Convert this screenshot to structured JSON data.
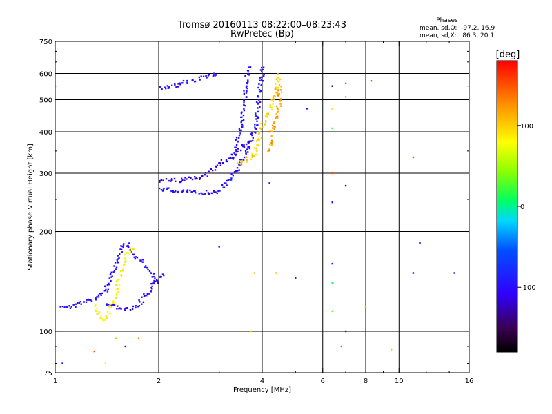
{
  "chart_data": {
    "type": "scatter",
    "title": "Tromsø 20160113 08:22:00–08:23:43",
    "subtitle": "RwPretec (Bp)",
    "xlabel": "Frequency [MHz]",
    "ylabel": "Stationary phase Virtual Height [km]",
    "x_scale": "log",
    "y_scale": "log",
    "xlim": [
      1,
      16
    ],
    "ylim": [
      75,
      750
    ],
    "x_ticks": [
      1,
      2,
      4,
      6,
      8,
      10,
      16
    ],
    "x_tick_labels": [
      "1",
      "2",
      "4",
      "6",
      "8",
      "10",
      "16"
    ],
    "x_grid": [
      2,
      4,
      6,
      8,
      10
    ],
    "y_ticks": [
      75,
      100,
      200,
      300,
      400,
      500,
      600,
      750
    ],
    "y_tick_labels": [
      "75",
      "100",
      "200",
      "300",
      "400",
      "500",
      "600",
      "750"
    ],
    "y_grid": [
      100,
      200,
      300,
      400,
      500,
      600
    ],
    "grid": true,
    "info": {
      "heading": "Phases",
      "line1": "mean, sd,O:  -97.2, 16.9",
      "line2": "mean, sd,X:   86.3, 20.1"
    },
    "colorbar": {
      "label": "[deg]",
      "range": [
        -180,
        180
      ],
      "ticks": [
        100,
        0,
        -100
      ],
      "tick_labels": [
        "100",
        "0",
        "-100"
      ]
    },
    "traces": [
      {
        "name": "",
        "phase": -100,
        "points": [
          [
            1.05,
            120
          ],
          [
            1.1,
            118
          ],
          [
            1.2,
            122
          ],
          [
            1.3,
            125
          ],
          [
            1.4,
            132
          ],
          [
            1.45,
            145
          ],
          [
            1.5,
            160
          ],
          [
            1.55,
            175
          ],
          [
            1.6,
            185
          ],
          [
            1.7,
            170
          ],
          [
            1.8,
            160
          ],
          [
            1.9,
            150
          ],
          [
            2.0,
            140
          ]
        ]
      },
      {
        "name": "",
        "phase": -105,
        "points": [
          [
            1.4,
            120
          ],
          [
            1.5,
            118
          ],
          [
            1.6,
            116
          ],
          [
            1.7,
            118
          ],
          [
            1.8,
            125
          ],
          [
            1.9,
            135
          ],
          [
            2.0,
            145
          ],
          [
            2.1,
            150
          ]
        ]
      },
      {
        "name": "",
        "phase": -95,
        "points": [
          [
            2.0,
            270
          ],
          [
            2.2,
            265
          ],
          [
            2.5,
            263
          ],
          [
            2.8,
            262
          ],
          [
            3.0,
            266
          ],
          [
            3.2,
            285
          ],
          [
            3.4,
            310
          ],
          [
            3.6,
            350
          ],
          [
            3.8,
            400
          ],
          [
            3.9,
            480
          ],
          [
            4.0,
            600
          ],
          [
            4.0,
            640
          ]
        ]
      },
      {
        "name": "",
        "phase": -110,
        "points": [
          [
            2.0,
            285
          ],
          [
            2.3,
            285
          ],
          [
            2.6,
            290
          ],
          [
            2.8,
            300
          ],
          [
            3.0,
            320
          ],
          [
            3.3,
            340
          ],
          [
            3.5,
            360
          ],
          [
            3.7,
            380
          ]
        ]
      },
      {
        "name": "",
        "phase": -100,
        "points": [
          [
            3.3,
            330
          ],
          [
            3.4,
            380
          ],
          [
            3.5,
            430
          ],
          [
            3.55,
            500
          ],
          [
            3.6,
            560
          ],
          [
            3.65,
            620
          ],
          [
            3.7,
            640
          ]
        ]
      },
      {
        "name": "",
        "phase": -100,
        "points": [
          [
            2.0,
            540
          ],
          [
            2.1,
            545
          ],
          [
            2.2,
            550
          ],
          [
            2.5,
            570
          ],
          [
            2.8,
            590
          ],
          [
            3.0,
            600
          ]
        ]
      },
      {
        "name": "",
        "phase": 100,
        "points": [
          [
            3.4,
            320
          ],
          [
            3.6,
            330
          ],
          [
            3.8,
            340
          ],
          [
            3.9,
            370
          ],
          [
            4.0,
            420
          ],
          [
            4.2,
            460
          ],
          [
            4.4,
            540
          ],
          [
            4.5,
            600
          ]
        ]
      },
      {
        "name": "",
        "phase": 80,
        "points": [
          [
            1.3,
            120
          ],
          [
            1.35,
            110
          ],
          [
            1.4,
            108
          ],
          [
            1.5,
            130
          ],
          [
            1.6,
            170
          ],
          [
            1.7,
            180
          ]
        ]
      },
      {
        "name": "",
        "phase": 120,
        "points": [
          [
            4.2,
            350
          ],
          [
            4.3,
            400
          ],
          [
            4.4,
            450
          ],
          [
            4.5,
            500
          ],
          [
            4.5,
            560
          ]
        ]
      }
    ],
    "isolated_points": [
      {
        "x": 6.4,
        "y": 470,
        "phase": 100
      },
      {
        "x": 6.4,
        "y": 410,
        "phase": 20
      },
      {
        "x": 6.4,
        "y": 300,
        "phase": 150
      },
      {
        "x": 6.4,
        "y": 245,
        "phase": -100
      },
      {
        "x": 6.4,
        "y": 160,
        "phase": -100
      },
      {
        "x": 6.4,
        "y": 140,
        "phase": 10
      },
      {
        "x": 6.4,
        "y": 115,
        "phase": 30
      },
      {
        "x": 6.8,
        "y": 90,
        "phase": 150
      },
      {
        "x": 7.0,
        "y": 510,
        "phase": 20
      },
      {
        "x": 7.0,
        "y": 560,
        "phase": 150
      },
      {
        "x": 6.4,
        "y": 550,
        "phase": -120
      },
      {
        "x": 7.0,
        "y": 275,
        "phase": -110
      },
      {
        "x": 8.3,
        "y": 570,
        "phase": 150
      },
      {
        "x": 8.0,
        "y": 118,
        "phase": 30
      },
      {
        "x": 7.0,
        "y": 100,
        "phase": -110
      },
      {
        "x": 11.0,
        "y": 335,
        "phase": 150
      },
      {
        "x": 11.5,
        "y": 185,
        "phase": -110
      },
      {
        "x": 11.0,
        "y": 150,
        "phase": -110
      },
      {
        "x": 14.5,
        "y": 150,
        "phase": -100
      },
      {
        "x": 9.5,
        "y": 88,
        "phase": 100
      },
      {
        "x": 5.4,
        "y": 470,
        "phase": -110
      },
      {
        "x": 5.0,
        "y": 145,
        "phase": -110
      },
      {
        "x": 3.0,
        "y": 180,
        "phase": -110
      },
      {
        "x": 1.05,
        "y": 80,
        "phase": -100
      },
      {
        "x": 1.3,
        "y": 87,
        "phase": 150
      },
      {
        "x": 1.4,
        "y": 80,
        "phase": 70
      },
      {
        "x": 1.5,
        "y": 95,
        "phase": 110
      },
      {
        "x": 1.6,
        "y": 90,
        "phase": -110
      },
      {
        "x": 1.75,
        "y": 95,
        "phase": 130
      },
      {
        "x": 4.2,
        "y": 400,
        "phase": 150
      },
      {
        "x": 3.8,
        "y": 150,
        "phase": 100
      },
      {
        "x": 4.4,
        "y": 150,
        "phase": 110
      },
      {
        "x": 3.7,
        "y": 100,
        "phase": 100
      },
      {
        "x": 4.2,
        "y": 280,
        "phase": -100
      }
    ]
  }
}
